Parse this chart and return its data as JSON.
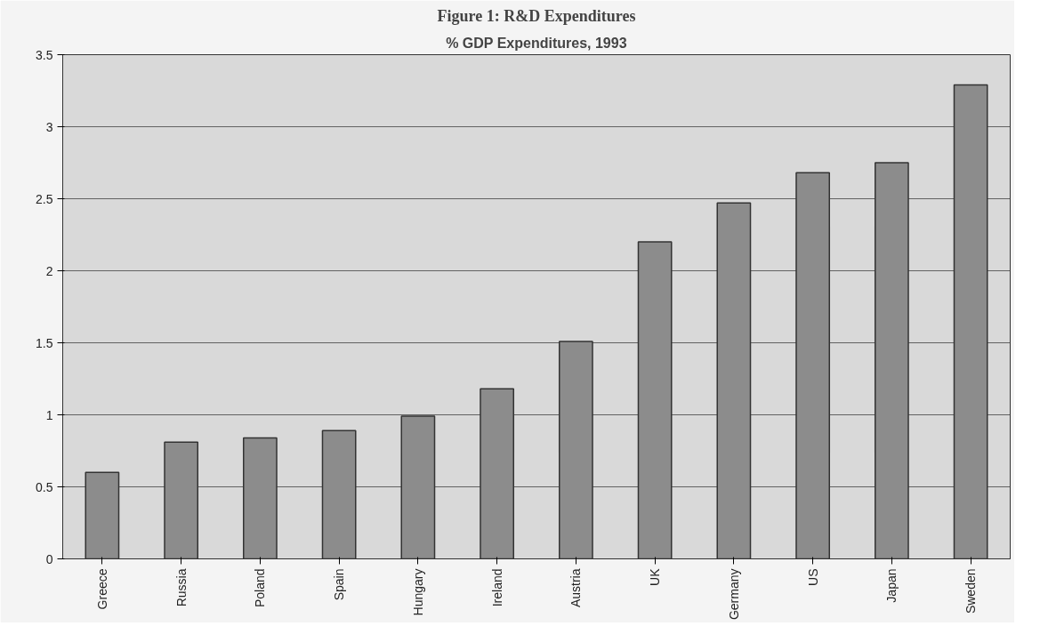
{
  "chart_data": {
    "type": "bar",
    "title": "% GDP Expenditures, 1993",
    "annotations": [
      "Figure 1: R&D Expenditures"
    ],
    "categories": [
      "Greece",
      "Russia",
      "Poland",
      "Spain",
      "Hungary",
      "Ireland",
      "Austria",
      "UK",
      "Germany",
      "US",
      "Japan",
      "Sweden"
    ],
    "values": [
      0.6,
      0.81,
      0.84,
      0.89,
      0.99,
      1.18,
      1.51,
      2.2,
      2.47,
      2.68,
      2.75,
      3.29
    ],
    "color": "#8c8c8c",
    "ylim": [
      0,
      3.5
    ],
    "yticks": [
      0,
      0.5,
      1,
      1.5,
      2,
      2.5,
      3,
      3.5
    ],
    "grid": "y"
  }
}
